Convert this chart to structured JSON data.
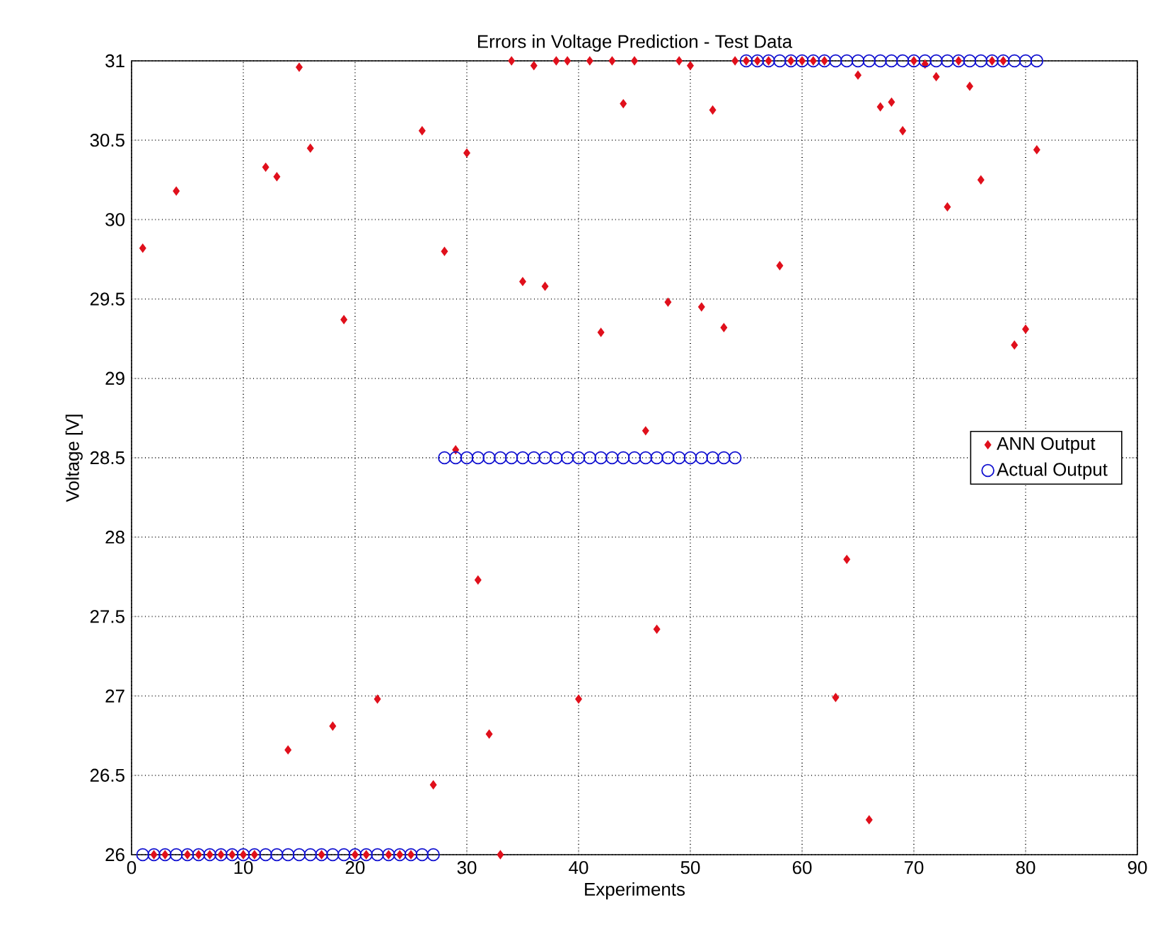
{
  "chart_data": {
    "type": "scatter",
    "title": "Errors in Voltage Prediction - Test Data",
    "xlabel": "Experiments",
    "ylabel": "Voltage [V]",
    "xlim": [
      0,
      90
    ],
    "ylim": [
      26,
      31
    ],
    "xticks": [
      0,
      10,
      20,
      30,
      40,
      50,
      60,
      70,
      80,
      90
    ],
    "yticks": [
      26,
      26.5,
      27,
      27.5,
      28,
      28.5,
      29,
      29.5,
      30,
      30.5,
      31
    ],
    "grid": true,
    "legend": "right",
    "series": [
      {
        "name": "ANN Output",
        "color": "#e0101c",
        "marker": "diamond",
        "x": [
          1,
          2,
          3,
          4,
          5,
          6,
          7,
          8,
          9,
          10,
          11,
          12,
          13,
          14,
          15,
          16,
          17,
          18,
          19,
          20,
          21,
          22,
          23,
          24,
          25,
          26,
          27,
          28,
          29,
          30,
          31,
          32,
          33,
          34,
          35,
          36,
          37,
          38,
          39,
          40,
          41,
          42,
          43,
          44,
          45,
          46,
          47,
          48,
          49,
          50,
          51,
          52,
          53,
          54,
          55,
          56,
          57,
          58,
          59,
          60,
          61,
          62,
          63,
          64,
          65,
          66,
          67,
          68,
          69,
          70,
          71,
          72,
          73,
          74,
          75,
          76,
          77,
          78,
          79,
          80,
          81
        ],
        "values": [
          29.82,
          26.0,
          26.0,
          30.18,
          26.0,
          26.0,
          26.0,
          26.0,
          26.0,
          26.0,
          26.0,
          30.33,
          30.27,
          26.66,
          30.96,
          30.45,
          26.0,
          26.81,
          29.37,
          26.0,
          26.0,
          26.98,
          26.0,
          26.0,
          26.0,
          30.56,
          26.44,
          29.8,
          28.55,
          30.42,
          27.73,
          26.76,
          26.0,
          31.0,
          29.61,
          30.97,
          29.58,
          31.0,
          31.0,
          26.98,
          31.0,
          29.29,
          31.0,
          30.73,
          31.0,
          28.67,
          27.42,
          29.48,
          31.0,
          30.97,
          29.45,
          30.69,
          29.32,
          31.0,
          31.0,
          31.0,
          31.0,
          29.71,
          31.0,
          31.0,
          31.0,
          31.0,
          26.99,
          27.86,
          30.91,
          26.22,
          30.71,
          30.74,
          30.56,
          31.0,
          30.98,
          30.9,
          30.08,
          31.0,
          30.84,
          30.25,
          31.0,
          31.0,
          29.21,
          29.31,
          30.44
        ]
      },
      {
        "name": "Actual Output",
        "color": "#1010d0",
        "marker": "circle",
        "x": [
          1,
          2,
          3,
          4,
          5,
          6,
          7,
          8,
          9,
          10,
          11,
          12,
          13,
          14,
          15,
          16,
          17,
          18,
          19,
          20,
          21,
          22,
          23,
          24,
          25,
          26,
          27,
          28,
          29,
          30,
          31,
          32,
          33,
          34,
          35,
          36,
          37,
          38,
          39,
          40,
          41,
          42,
          43,
          44,
          45,
          46,
          47,
          48,
          49,
          50,
          51,
          52,
          53,
          54,
          55,
          56,
          57,
          58,
          59,
          60,
          61,
          62,
          63,
          64,
          65,
          66,
          67,
          68,
          69,
          70,
          71,
          72,
          73,
          74,
          75,
          76,
          77,
          78,
          79,
          80,
          81
        ],
        "values": [
          26,
          26,
          26,
          26,
          26,
          26,
          26,
          26,
          26,
          26,
          26,
          26,
          26,
          26,
          26,
          26,
          26,
          26,
          26,
          26,
          26,
          26,
          26,
          26,
          26,
          26,
          26,
          28.5,
          28.5,
          28.5,
          28.5,
          28.5,
          28.5,
          28.5,
          28.5,
          28.5,
          28.5,
          28.5,
          28.5,
          28.5,
          28.5,
          28.5,
          28.5,
          28.5,
          28.5,
          28.5,
          28.5,
          28.5,
          28.5,
          28.5,
          28.5,
          28.5,
          28.5,
          28.5,
          31,
          31,
          31,
          31,
          31,
          31,
          31,
          31,
          31,
          31,
          31,
          31,
          31,
          31,
          31,
          31,
          31,
          31,
          31,
          31,
          31,
          31,
          31,
          31,
          31,
          31,
          31
        ]
      }
    ]
  }
}
